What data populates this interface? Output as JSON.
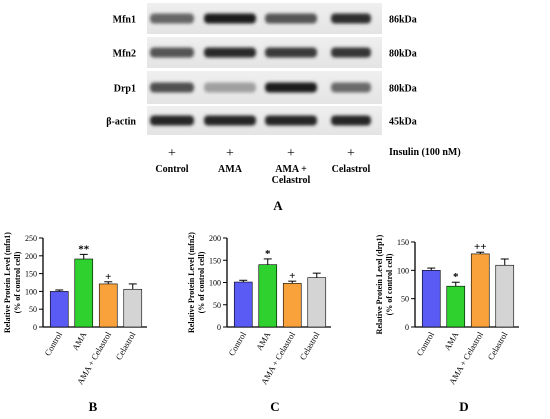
{
  "blot": {
    "proteins": [
      {
        "name": "Mfn1",
        "kda": "86kDa",
        "intensities": [
          0.62,
          0.95,
          0.7,
          0.88
        ]
      },
      {
        "name": "Mfn2",
        "kda": "80kDa",
        "intensities": [
          0.7,
          0.9,
          0.82,
          0.85
        ]
      },
      {
        "name": "Drp1",
        "kda": "80kDa",
        "intensities": [
          0.72,
          0.35,
          0.95,
          0.6
        ]
      },
      {
        "name": "β-actin",
        "kda": "45kDa",
        "intensities": [
          0.92,
          0.92,
          0.92,
          0.92
        ]
      }
    ],
    "plus_sign": "+",
    "insulin_label": "Insulin (100 nM)",
    "lanes": [
      {
        "lines": [
          "Control"
        ]
      },
      {
        "lines": [
          "AMA"
        ]
      },
      {
        "lines": [
          "AMA +",
          "Celastrol"
        ]
      },
      {
        "lines": [
          "Celastrol"
        ]
      }
    ],
    "panel_label": "A"
  },
  "colors": {
    "control": "#5a5af5",
    "ama": "#2ed12e",
    "ama_celastrol": "#f9a13a",
    "celastrol": "#d4d4d4"
  },
  "chart_data": [
    {
      "type": "bar",
      "panel_label": "B",
      "ylabel_lines": [
        "Relative Protein Level (mfn1)",
        "(% of control cell)"
      ],
      "categories": [
        "Control",
        "AMA",
        "AMA + Celastrol",
        "Celastrol"
      ],
      "values": [
        100,
        191,
        121,
        106
      ],
      "errors": [
        4,
        13,
        6,
        15
      ],
      "annotations": [
        "",
        "**",
        "+",
        ""
      ],
      "ylim": [
        0,
        250
      ],
      "yticks": [
        0,
        50,
        100,
        150,
        200,
        250
      ]
    },
    {
      "type": "bar",
      "panel_label": "C",
      "ylabel_lines": [
        "Relative Protein Level (mfn2)",
        "(% of control cell)"
      ],
      "categories": [
        "Control",
        "AMA",
        "AMA + Celastrol",
        "Celastrol"
      ],
      "values": [
        101,
        140,
        98,
        111
      ],
      "errors": [
        4,
        13,
        5,
        10
      ],
      "annotations": [
        "",
        "*",
        "+",
        ""
      ],
      "ylim": [
        0,
        200
      ],
      "yticks": [
        0,
        50,
        100,
        150,
        200
      ]
    },
    {
      "type": "bar",
      "panel_label": "D",
      "ylabel_lines": [
        "Relative Protein Level (drp1)",
        "(% of control cell)"
      ],
      "categories": [
        "Control",
        "AMA",
        "AMA + Celastrol",
        "Celastrol"
      ],
      "values": [
        100,
        72,
        129,
        109
      ],
      "errors": [
        4,
        7,
        3,
        11
      ],
      "annotations": [
        "",
        "*",
        "++",
        ""
      ],
      "ylim": [
        0,
        150
      ],
      "yticks": [
        0,
        50,
        100,
        150
      ]
    }
  ]
}
